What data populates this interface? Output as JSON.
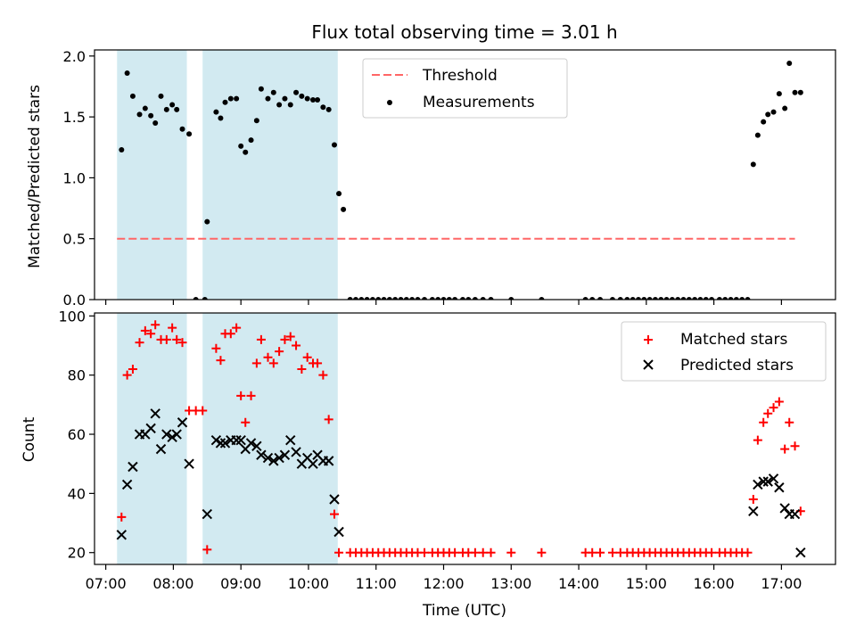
{
  "chart_data": [
    {
      "type": "scatter",
      "title": "Flux total observing time = 3.01 h",
      "xlabel": "",
      "ylabel": "Matched/Predicted stars",
      "xlim": [
        "06:50",
        "17:48"
      ],
      "ylim": [
        0,
        2.05
      ],
      "y_ticks": [
        "0.0",
        "0.5",
        "1.0",
        "1.5",
        "2.0"
      ],
      "threshold": 0.5,
      "threshold_x": [
        "07:10",
        "17:12"
      ],
      "shaded_regions": [
        [
          "07:10",
          "08:12"
        ],
        [
          "08:26",
          "10:26"
        ]
      ],
      "shade_color": "#add8e6",
      "legend": {
        "placement": "upper-center",
        "entries": [
          "Threshold",
          "Measurements"
        ]
      },
      "series": [
        {
          "name": "Measurements",
          "color": "#000000",
          "points": [
            [
              "07:14",
              1.23
            ],
            [
              "07:19",
              1.86
            ],
            [
              "07:24",
              1.67
            ],
            [
              "07:30",
              1.52
            ],
            [
              "07:35",
              1.57
            ],
            [
              "07:40",
              1.51
            ],
            [
              "07:44",
              1.45
            ],
            [
              "07:49",
              1.67
            ],
            [
              "07:54",
              1.56
            ],
            [
              "07:59",
              1.6
            ],
            [
              "08:03",
              1.56
            ],
            [
              "08:08",
              1.4
            ],
            [
              "08:14",
              1.36
            ],
            [
              "08:20",
              0.0
            ],
            [
              "08:28",
              0.0
            ],
            [
              "08:30",
              0.64
            ],
            [
              "08:38",
              1.54
            ],
            [
              "08:42",
              1.49
            ],
            [
              "08:46",
              1.62
            ],
            [
              "08:51",
              1.65
            ],
            [
              "08:56",
              1.65
            ],
            [
              "09:00",
              1.26
            ],
            [
              "09:04",
              1.21
            ],
            [
              "09:09",
              1.31
            ],
            [
              "09:14",
              1.47
            ],
            [
              "09:18",
              1.73
            ],
            [
              "09:24",
              1.65
            ],
            [
              "09:29",
              1.7
            ],
            [
              "09:34",
              1.6
            ],
            [
              "09:39",
              1.65
            ],
            [
              "09:44",
              1.6
            ],
            [
              "09:49",
              1.7
            ],
            [
              "09:54",
              1.67
            ],
            [
              "09:59",
              1.65
            ],
            [
              "10:04",
              1.64
            ],
            [
              "10:08",
              1.64
            ],
            [
              "10:13",
              1.58
            ],
            [
              "10:18",
              1.56
            ],
            [
              "10:23",
              1.27
            ],
            [
              "10:27",
              0.87
            ],
            [
              "10:31",
              0.74
            ],
            [
              "10:37",
              0.0
            ],
            [
              "10:42",
              0.0
            ],
            [
              "10:47",
              0.0
            ],
            [
              "10:52",
              0.0
            ],
            [
              "10:57",
              0.0
            ],
            [
              "11:02",
              0.0
            ],
            [
              "11:07",
              0.0
            ],
            [
              "11:12",
              0.0
            ],
            [
              "11:17",
              0.0
            ],
            [
              "11:22",
              0.0
            ],
            [
              "11:27",
              0.0
            ],
            [
              "11:32",
              0.0
            ],
            [
              "11:37",
              0.0
            ],
            [
              "11:43",
              0.0
            ],
            [
              "11:50",
              0.0
            ],
            [
              "11:55",
              0.0
            ],
            [
              "12:00",
              0.0
            ],
            [
              "12:05",
              0.0
            ],
            [
              "12:10",
              0.0
            ],
            [
              "12:17",
              0.0
            ],
            [
              "12:22",
              0.0
            ],
            [
              "12:28",
              0.0
            ],
            [
              "12:35",
              0.0
            ],
            [
              "12:42",
              0.0
            ],
            [
              "13:00",
              0.0
            ],
            [
              "13:27",
              0.0
            ],
            [
              "14:06",
              0.0
            ],
            [
              "14:12",
              0.0
            ],
            [
              "14:19",
              0.0
            ],
            [
              "14:30",
              0.0
            ],
            [
              "14:37",
              0.0
            ],
            [
              "14:43",
              0.0
            ],
            [
              "14:48",
              0.0
            ],
            [
              "14:53",
              0.0
            ],
            [
              "14:58",
              0.0
            ],
            [
              "15:03",
              0.0
            ],
            [
              "15:08",
              0.0
            ],
            [
              "15:13",
              0.0
            ],
            [
              "15:18",
              0.0
            ],
            [
              "15:23",
              0.0
            ],
            [
              "15:28",
              0.0
            ],
            [
              "15:33",
              0.0
            ],
            [
              "15:38",
              0.0
            ],
            [
              "15:43",
              0.0
            ],
            [
              "15:48",
              0.0
            ],
            [
              "15:53",
              0.0
            ],
            [
              "15:58",
              0.0
            ],
            [
              "16:05",
              0.0
            ],
            [
              "16:10",
              0.0
            ],
            [
              "16:15",
              0.0
            ],
            [
              "16:20",
              0.0
            ],
            [
              "16:25",
              0.0
            ],
            [
              "16:30",
              0.0
            ],
            [
              "16:35",
              1.11
            ],
            [
              "16:39",
              1.35
            ],
            [
              "16:44",
              1.46
            ],
            [
              "16:48",
              1.52
            ],
            [
              "16:53",
              1.54
            ],
            [
              "16:58",
              1.69
            ],
            [
              "17:03",
              1.57
            ],
            [
              "17:07",
              1.94
            ],
            [
              "17:12",
              1.7
            ],
            [
              "17:17",
              1.7
            ]
          ]
        }
      ]
    },
    {
      "type": "scatter",
      "title": "",
      "xlabel": "Time (UTC)",
      "ylabel": "Count",
      "xlim": [
        "06:50",
        "17:48"
      ],
      "ylim": [
        16,
        101
      ],
      "y_ticks": [
        "20",
        "40",
        "60",
        "80",
        "100"
      ],
      "x_ticks": [
        "07:00",
        "08:00",
        "09:00",
        "10:00",
        "11:00",
        "12:00",
        "13:00",
        "14:00",
        "15:00",
        "16:00",
        "17:00"
      ],
      "shaded_regions": [
        [
          "07:10",
          "08:12"
        ],
        [
          "08:26",
          "10:26"
        ]
      ],
      "shade_color": "#add8e6",
      "legend": {
        "placement": "upper-right",
        "entries": [
          "Matched stars",
          "Predicted stars"
        ]
      },
      "series": [
        {
          "name": "Matched stars",
          "marker": "plus",
          "color": "#ff0000",
          "points": [
            [
              "07:14",
              32
            ],
            [
              "07:19",
              80
            ],
            [
              "07:24",
              82
            ],
            [
              "07:30",
              91
            ],
            [
              "07:35",
              95
            ],
            [
              "07:40",
              94
            ],
            [
              "07:44",
              97
            ],
            [
              "07:49",
              92
            ],
            [
              "07:54",
              92
            ],
            [
              "07:59",
              96
            ],
            [
              "08:03",
              92
            ],
            [
              "08:08",
              91
            ],
            [
              "08:14",
              68
            ],
            [
              "08:20",
              68
            ],
            [
              "08:26",
              68
            ],
            [
              "08:30",
              21
            ],
            [
              "08:38",
              89
            ],
            [
              "08:42",
              85
            ],
            [
              "08:46",
              94
            ],
            [
              "08:51",
              94
            ],
            [
              "08:56",
              96
            ],
            [
              "09:00",
              73
            ],
            [
              "09:04",
              64
            ],
            [
              "09:09",
              73
            ],
            [
              "09:14",
              84
            ],
            [
              "09:18",
              92
            ],
            [
              "09:24",
              86
            ],
            [
              "09:29",
              84
            ],
            [
              "09:34",
              88
            ],
            [
              "09:39",
              92
            ],
            [
              "09:44",
              93
            ],
            [
              "09:49",
              90
            ],
            [
              "09:54",
              82
            ],
            [
              "09:59",
              86
            ],
            [
              "10:04",
              84
            ],
            [
              "10:08",
              84
            ],
            [
              "10:13",
              80
            ],
            [
              "10:18",
              65
            ],
            [
              "10:23",
              33
            ],
            [
              "10:27",
              20
            ],
            [
              "10:37",
              20
            ],
            [
              "10:42",
              20
            ],
            [
              "10:47",
              20
            ],
            [
              "10:52",
              20
            ],
            [
              "10:57",
              20
            ],
            [
              "11:02",
              20
            ],
            [
              "11:07",
              20
            ],
            [
              "11:12",
              20
            ],
            [
              "11:17",
              20
            ],
            [
              "11:22",
              20
            ],
            [
              "11:27",
              20
            ],
            [
              "11:32",
              20
            ],
            [
              "11:37",
              20
            ],
            [
              "11:43",
              20
            ],
            [
              "11:50",
              20
            ],
            [
              "11:55",
              20
            ],
            [
              "12:00",
              20
            ],
            [
              "12:05",
              20
            ],
            [
              "12:10",
              20
            ],
            [
              "12:17",
              20
            ],
            [
              "12:22",
              20
            ],
            [
              "12:28",
              20
            ],
            [
              "12:35",
              20
            ],
            [
              "12:42",
              20
            ],
            [
              "13:00",
              20
            ],
            [
              "13:27",
              20
            ],
            [
              "14:06",
              20
            ],
            [
              "14:12",
              20
            ],
            [
              "14:19",
              20
            ],
            [
              "14:30",
              20
            ],
            [
              "14:37",
              20
            ],
            [
              "14:43",
              20
            ],
            [
              "14:48",
              20
            ],
            [
              "14:53",
              20
            ],
            [
              "14:58",
              20
            ],
            [
              "15:03",
              20
            ],
            [
              "15:08",
              20
            ],
            [
              "15:13",
              20
            ],
            [
              "15:18",
              20
            ],
            [
              "15:23",
              20
            ],
            [
              "15:28",
              20
            ],
            [
              "15:33",
              20
            ],
            [
              "15:38",
              20
            ],
            [
              "15:43",
              20
            ],
            [
              "15:48",
              20
            ],
            [
              "15:53",
              20
            ],
            [
              "15:58",
              20
            ],
            [
              "16:05",
              20
            ],
            [
              "16:10",
              20
            ],
            [
              "16:15",
              20
            ],
            [
              "16:20",
              20
            ],
            [
              "16:25",
              20
            ],
            [
              "16:30",
              20
            ],
            [
              "16:35",
              38
            ],
            [
              "16:39",
              58
            ],
            [
              "16:44",
              64
            ],
            [
              "16:48",
              67
            ],
            [
              "16:53",
              69
            ],
            [
              "16:58",
              71
            ],
            [
              "17:03",
              55
            ],
            [
              "17:07",
              64
            ],
            [
              "17:12",
              56
            ],
            [
              "17:17",
              34
            ]
          ]
        },
        {
          "name": "Predicted stars",
          "marker": "x",
          "color": "#000000",
          "points": [
            [
              "07:14",
              26
            ],
            [
              "07:19",
              43
            ],
            [
              "07:24",
              49
            ],
            [
              "07:30",
              60
            ],
            [
              "07:35",
              60
            ],
            [
              "07:40",
              62
            ],
            [
              "07:44",
              67
            ],
            [
              "07:49",
              55
            ],
            [
              "07:54",
              60
            ],
            [
              "07:59",
              59
            ],
            [
              "08:03",
              60
            ],
            [
              "08:08",
              64
            ],
            [
              "08:14",
              50
            ],
            [
              "08:30",
              33
            ],
            [
              "08:38",
              58
            ],
            [
              "08:42",
              57
            ],
            [
              "08:46",
              57
            ],
            [
              "08:51",
              58
            ],
            [
              "08:56",
              58
            ],
            [
              "09:00",
              58
            ],
            [
              "09:04",
              55
            ],
            [
              "09:09",
              57
            ],
            [
              "09:14",
              56
            ],
            [
              "09:18",
              53
            ],
            [
              "09:24",
              52
            ],
            [
              "09:29",
              51
            ],
            [
              "09:34",
              52
            ],
            [
              "09:39",
              53
            ],
            [
              "09:44",
              58
            ],
            [
              "09:49",
              54
            ],
            [
              "09:54",
              50
            ],
            [
              "09:59",
              52
            ],
            [
              "10:04",
              50
            ],
            [
              "10:08",
              53
            ],
            [
              "10:13",
              51
            ],
            [
              "10:18",
              51
            ],
            [
              "10:23",
              38
            ],
            [
              "10:27",
              27
            ],
            [
              "16:35",
              34
            ],
            [
              "16:39",
              43
            ],
            [
              "16:44",
              44
            ],
            [
              "16:48",
              44
            ],
            [
              "16:53",
              45
            ],
            [
              "16:58",
              42
            ],
            [
              "17:03",
              35
            ],
            [
              "17:07",
              33
            ],
            [
              "17:12",
              33
            ],
            [
              "17:17",
              20
            ]
          ]
        }
      ]
    }
  ]
}
